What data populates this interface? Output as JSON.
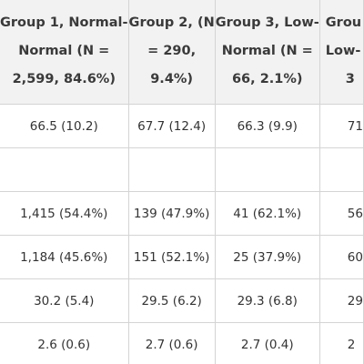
{
  "columns": [
    {
      "lines": [
        "Group 1, Normal-",
        "Normal (N =",
        "2,599, 84.6%)"
      ]
    },
    {
      "lines": [
        "Group 2, (N",
        "= 290,",
        "9.4%)"
      ]
    },
    {
      "lines": [
        "Group 3, Low-",
        "Normal (N =",
        "66, 2.1%)"
      ]
    },
    {
      "lines": [
        "Grou",
        "Low-",
        "3"
      ]
    }
  ],
  "rows": [
    [
      "66.5 (10.2)",
      "67.7 (12.4)",
      "66.3 (9.9)",
      "71"
    ],
    [
      "",
      "",
      "",
      ""
    ],
    [
      "1,415 (54.4%)",
      "139 (47.9%)",
      "41 (62.1%)",
      "56"
    ],
    [
      "1,184 (45.6%)",
      "151 (52.1%)",
      "25 (37.9%)",
      "60"
    ],
    [
      "30.2 (5.4)",
      "29.5 (6.2)",
      "29.3 (6.8)",
      "29"
    ],
    [
      "2.6 (0.6)",
      "2.7 (0.6)",
      "2.7 (0.4)",
      "2"
    ]
  ]
}
